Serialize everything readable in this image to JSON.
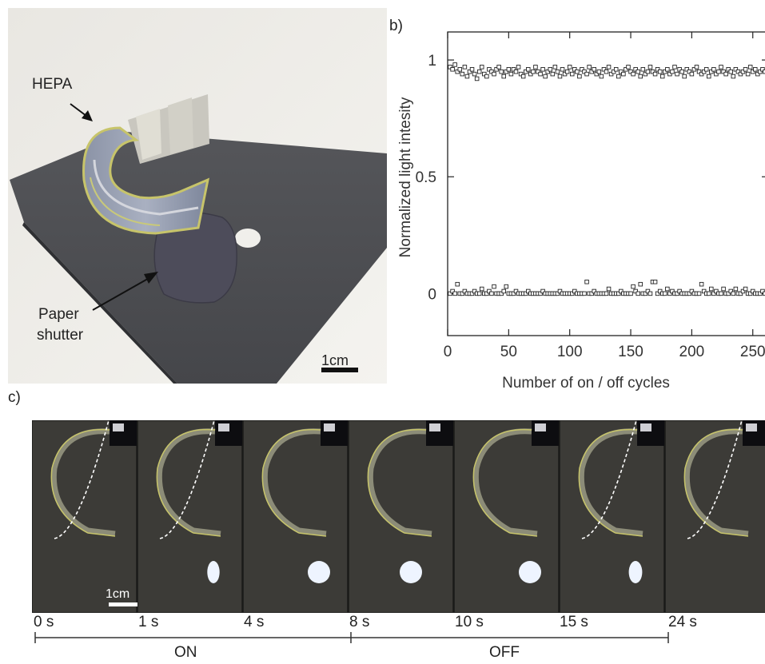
{
  "panels": {
    "a": {
      "label": "a)",
      "callout_hepa": "HEPA",
      "callout_shutter_line1": "Paper",
      "callout_shutter_line2": "shutter",
      "scale_bar": "1cm"
    },
    "b": {
      "label": "b)"
    },
    "c": {
      "label": "c)",
      "scale_bar": "1cm",
      "frames": [
        {
          "time": "0 s",
          "light": 0
        },
        {
          "time": "1 s",
          "light": 0.55
        },
        {
          "time": "4 s",
          "light": 1
        },
        {
          "time": "8 s",
          "light": 1
        },
        {
          "time": "10 s",
          "light": 1
        },
        {
          "time": "15 s",
          "light": 0.6
        },
        {
          "time": "24 s",
          "light": 0
        }
      ],
      "phase_on": "ON",
      "phase_off": "OFF"
    }
  },
  "chart_data": {
    "type": "scatter",
    "title": "",
    "xlabel": "Number of on / off cycles",
    "ylabel": "Normalized light intesity",
    "xlim": [
      0,
      260
    ],
    "ylim": [
      -0.18,
      1.12
    ],
    "xticks": [
      "0",
      "50",
      "100",
      "150",
      "200",
      "250"
    ],
    "xtick_values": [
      0,
      50,
      100,
      150,
      200,
      250
    ],
    "yticks": [
      "0",
      "0.5",
      "1"
    ],
    "ytick_values": [
      0,
      0.5,
      1
    ],
    "grid": false,
    "marker": "open-square",
    "series": [
      {
        "values_on": [
          0.97,
          0.96,
          0.98,
          0.95,
          0.96,
          0.94,
          0.97,
          0.93,
          0.95,
          0.96,
          0.94,
          0.92,
          0.95,
          0.97,
          0.94,
          0.93,
          0.96,
          0.95,
          0.94,
          0.96,
          0.97,
          0.95,
          0.93,
          0.95,
          0.96,
          0.94,
          0.96,
          0.95,
          0.97,
          0.94,
          0.93,
          0.95,
          0.96,
          0.94,
          0.95,
          0.97,
          0.95,
          0.94,
          0.96,
          0.93,
          0.95,
          0.96,
          0.94,
          0.97,
          0.95,
          0.93,
          0.96,
          0.94,
          0.95,
          0.97,
          0.94,
          0.96,
          0.95,
          0.93,
          0.96,
          0.95,
          0.94,
          0.97,
          0.95,
          0.96,
          0.94,
          0.95,
          0.93,
          0.96,
          0.95,
          0.97,
          0.94,
          0.95,
          0.96,
          0.93,
          0.95,
          0.94,
          0.96,
          0.97,
          0.95,
          0.94,
          0.96,
          0.95,
          0.93,
          0.96,
          0.94,
          0.95,
          0.97,
          0.95,
          0.94,
          0.96,
          0.95,
          0.93,
          0.95,
          0.96,
          0.94,
          0.95,
          0.97,
          0.94,
          0.96,
          0.95,
          0.93,
          0.96,
          0.95,
          0.94,
          0.96,
          0.97,
          0.95,
          0.94,
          0.95,
          0.96,
          0.93,
          0.95,
          0.96,
          0.94,
          0.95,
          0.97,
          0.95,
          0.94,
          0.96,
          0.95,
          0.93,
          0.96,
          0.95,
          0.94,
          0.95,
          0.96,
          0.94,
          0.97,
          0.95,
          0.96,
          0.94,
          0.95,
          0.96,
          0.95
        ],
        "values_off": [
          0.0,
          0.01,
          0.0,
          0.04,
          0.0,
          0.0,
          0.01,
          0.0,
          0.0,
          0.0,
          0.01,
          0.0,
          0.0,
          0.02,
          0.0,
          0.0,
          0.01,
          0.0,
          0.03,
          0.0,
          0.0,
          0.0,
          0.01,
          0.03,
          0.0,
          0.0,
          0.0,
          0.01,
          0.0,
          0.0,
          0.0,
          0.0,
          0.01,
          0.0,
          0.0,
          0.0,
          0.0,
          0.0,
          0.01,
          0.0,
          0.0,
          0.0,
          0.0,
          0.0,
          0.0,
          0.01,
          0.0,
          0.0,
          0.0,
          0.0,
          0.0,
          0.01,
          0.0,
          0.0,
          0.0,
          0.0,
          0.05,
          0.0,
          0.0,
          0.01,
          0.0,
          0.0,
          0.0,
          0.0,
          0.0,
          0.02,
          0.0,
          0.0,
          0.0,
          0.0,
          0.01,
          0.0,
          0.0,
          0.0,
          0.0,
          0.03,
          0.01,
          0.0,
          0.04,
          0.0,
          0.0,
          0.01,
          0.0,
          0.05,
          0.05,
          0.0,
          0.01,
          0.0,
          0.0,
          0.02,
          0.0,
          0.01,
          0.0,
          0.0,
          0.01,
          0.0,
          0.0,
          0.0,
          0.0,
          0.01,
          0.0,
          0.0,
          0.0,
          0.04,
          0.01,
          0.0,
          0.0,
          0.02,
          0.0,
          0.01,
          0.0,
          0.0,
          0.02,
          0.0,
          0.0,
          0.01,
          0.0,
          0.02,
          0.0,
          0.0,
          0.01,
          0.02,
          0.0,
          0.0,
          0.01,
          0.0,
          0.0,
          0.0,
          0.01,
          0.0
        ]
      }
    ]
  }
}
